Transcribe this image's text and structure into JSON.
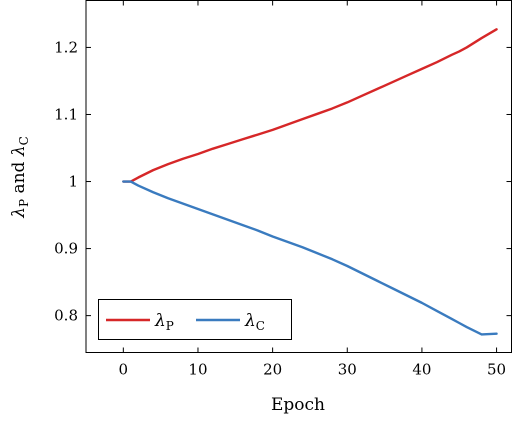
{
  "chart_data": {
    "type": "line",
    "xlabel": "Epoch",
    "ylabel": "λ_P and λ_C",
    "xlim": [
      -5,
      52
    ],
    "ylim": [
      0.745,
      1.27
    ],
    "xticks": [
      0,
      10,
      20,
      30,
      40,
      50
    ],
    "yticks": [
      0.8,
      0.9,
      1,
      1.1,
      1.2
    ],
    "xtick_labels": [
      "0",
      "10",
      "20",
      "30",
      "40",
      "50"
    ],
    "ytick_labels": [
      "0.8",
      "0.9",
      "1",
      "1.1",
      "1.2"
    ],
    "grid": false,
    "legend_position": "bottom-left",
    "x": [
      0,
      1,
      2,
      4,
      6,
      8,
      10,
      12,
      14,
      16,
      18,
      20,
      22,
      24,
      26,
      28,
      30,
      32,
      34,
      36,
      38,
      40,
      42,
      44,
      45,
      46,
      48,
      50
    ],
    "series": [
      {
        "name": "λ_P",
        "color": "#d62728",
        "values": [
          1.0,
          1.0,
          1.006,
          1.017,
          1.026,
          1.034,
          1.041,
          1.049,
          1.056,
          1.063,
          1.07,
          1.077,
          1.085,
          1.093,
          1.101,
          1.109,
          1.118,
          1.128,
          1.138,
          1.148,
          1.158,
          1.168,
          1.178,
          1.189,
          1.194,
          1.2,
          1.214,
          1.227
        ]
      },
      {
        "name": "λ_C",
        "color": "#3a7bbf",
        "values": [
          1.0,
          1.0,
          0.994,
          0.984,
          0.975,
          0.967,
          0.959,
          0.951,
          0.943,
          0.935,
          0.927,
          0.918,
          0.91,
          0.902,
          0.893,
          0.884,
          0.874,
          0.863,
          0.852,
          0.841,
          0.83,
          0.819,
          0.807,
          0.795,
          0.789,
          0.783,
          0.772,
          0.773
        ]
      }
    ]
  }
}
